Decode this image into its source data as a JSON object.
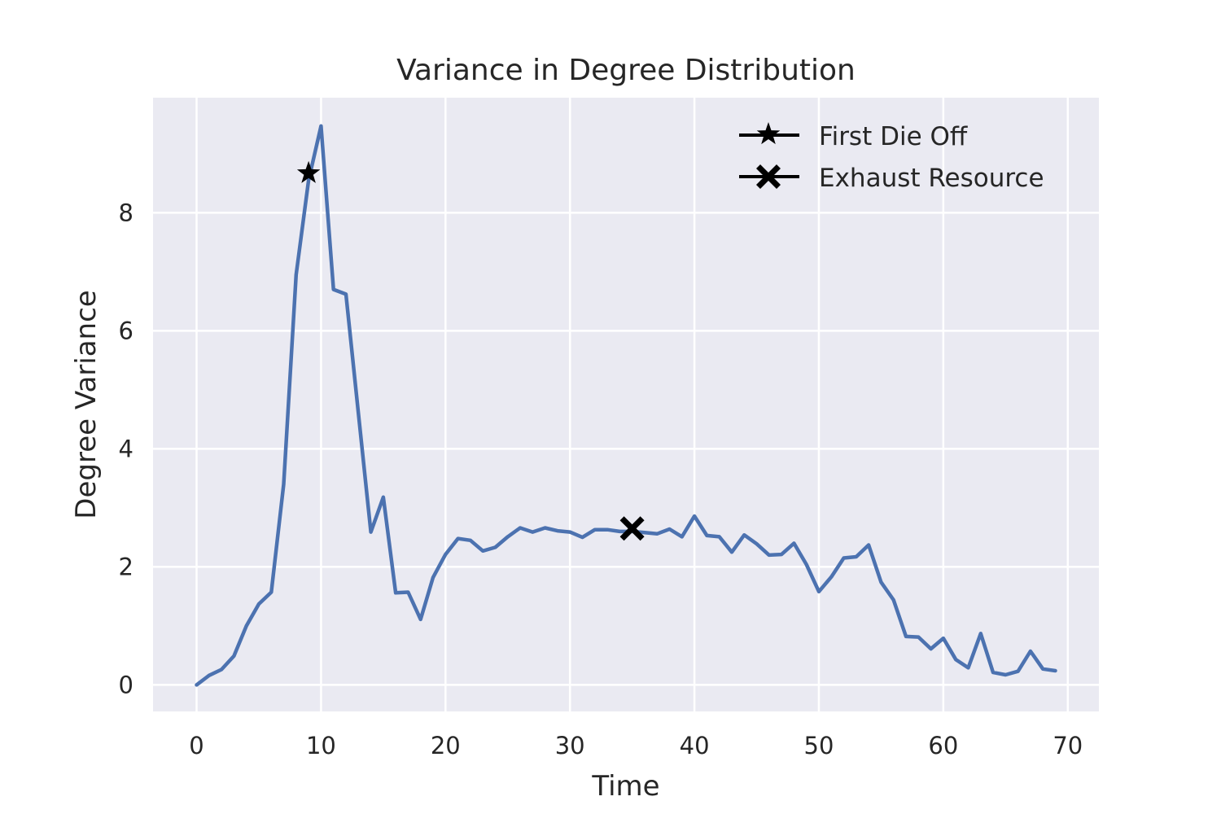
{
  "chart_data": {
    "type": "line",
    "title": "Variance in Degree Distribution",
    "xlabel": "Time",
    "ylabel": "Degree Variance",
    "xlim": [
      -3.5,
      72.5
    ],
    "ylim": [
      -0.45,
      9.95
    ],
    "xticks": [
      0,
      10,
      20,
      30,
      40,
      50,
      60,
      70
    ],
    "yticks": [
      0,
      2,
      4,
      6,
      8
    ],
    "grid": true,
    "legend_position": "top-right",
    "colors": {
      "background": "#EAEAF2",
      "grid": "#FFFFFF",
      "line": "#4C72B0",
      "marker": "#000000"
    },
    "series": [
      {
        "x": [
          0,
          1,
          2,
          3,
          4,
          5,
          6,
          7,
          8,
          9,
          10,
          11,
          12,
          13,
          14,
          15,
          16,
          17,
          18,
          19,
          20,
          21,
          22,
          23,
          24,
          25,
          26,
          27,
          28,
          29,
          30,
          31,
          32,
          33,
          34,
          35,
          36,
          37,
          38,
          39,
          40,
          41,
          42,
          43,
          44,
          45,
          46,
          47,
          48,
          49,
          50,
          51,
          52,
          53,
          54,
          55,
          56,
          57,
          58,
          59,
          60,
          61,
          62,
          63,
          64,
          65,
          66,
          67,
          68,
          69
        ],
        "values": [
          0.0,
          0.16,
          0.26,
          0.49,
          1.0,
          1.37,
          1.57,
          3.4,
          6.95,
          8.55,
          9.47,
          6.7,
          6.62,
          4.6,
          2.59,
          3.18,
          1.56,
          1.57,
          1.11,
          1.82,
          2.21,
          2.48,
          2.45,
          2.27,
          2.33,
          2.51,
          2.66,
          2.59,
          2.66,
          2.61,
          2.59,
          2.5,
          2.63,
          2.63,
          2.6,
          2.6,
          2.58,
          2.56,
          2.64,
          2.51,
          2.86,
          2.53,
          2.51,
          2.25,
          2.54,
          2.39,
          2.2,
          2.21,
          2.4,
          2.04,
          1.58,
          1.83,
          2.15,
          2.17,
          2.37,
          1.74,
          1.44,
          0.82,
          0.81,
          0.61,
          0.79,
          0.43,
          0.29,
          0.87,
          0.21,
          0.17,
          0.23,
          0.57,
          0.27,
          0.24
        ]
      },
      {
        "name": "First Die Off",
        "marker": "star",
        "x": [
          9
        ],
        "values": [
          8.67
        ]
      },
      {
        "name": "Exhaust Resource",
        "marker": "x",
        "x": [
          35
        ],
        "values": [
          2.65
        ]
      }
    ]
  }
}
